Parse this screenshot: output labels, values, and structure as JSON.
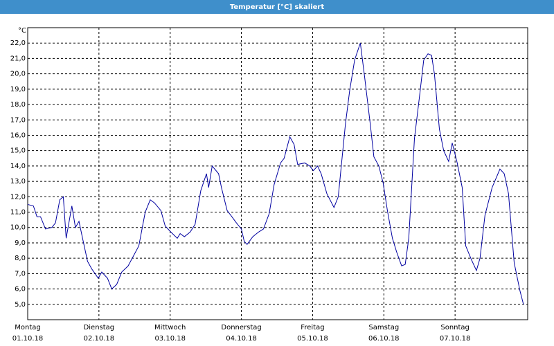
{
  "chart_data": {
    "type": "line",
    "title": "Temperatur [°C] skaliert",
    "ylabel": "°C",
    "x": [
      0,
      0.08,
      0.13,
      0.18,
      0.25,
      0.34,
      0.39,
      0.45,
      0.5,
      0.54,
      0.62,
      0.67,
      0.72,
      0.77,
      0.84,
      0.9,
      0.99,
      1.04,
      1.12,
      1.18,
      1.25,
      1.32,
      1.41,
      1.56,
      1.65,
      1.72,
      1.78,
      1.87,
      1.93,
      2.01,
      2.1,
      2.14,
      2.2,
      2.28,
      2.35,
      2.43,
      2.51,
      2.54,
      2.59,
      2.68,
      2.72,
      2.8,
      2.85,
      2.93,
      3.0,
      3.04,
      3.08,
      3.16,
      3.24,
      3.31,
      3.39,
      3.46,
      3.55,
      3.6,
      3.68,
      3.74,
      3.79,
      3.89,
      3.96,
      4.01,
      4.07,
      4.12,
      4.2,
      4.3,
      4.36,
      4.46,
      4.52,
      4.59,
      4.67,
      4.73,
      4.81,
      4.86,
      4.93,
      4.99,
      5.05,
      5.12,
      5.18,
      5.25,
      5.3,
      5.35,
      5.43,
      5.5,
      5.56,
      5.62,
      5.67,
      5.71,
      5.78,
      5.84,
      5.91,
      5.96,
      6.03,
      6.1,
      6.15,
      6.23,
      6.3,
      6.35,
      6.42,
      6.52,
      6.63,
      6.69,
      6.75,
      6.83,
      6.91,
      6.96
    ],
    "series": [
      {
        "color": "#0000a0",
        "values": [
          11.5,
          11.4,
          10.7,
          10.7,
          9.9,
          10.0,
          10.3,
          11.8,
          12.0,
          9.3,
          11.4,
          10.0,
          10.4,
          9.3,
          7.8,
          7.3,
          6.7,
          7.1,
          6.7,
          6.0,
          6.3,
          7.1,
          7.5,
          8.8,
          11.0,
          11.8,
          11.6,
          11.1,
          10.1,
          9.7,
          9.3,
          9.6,
          9.4,
          9.7,
          10.2,
          12.4,
          13.5,
          12.6,
          14.0,
          13.5,
          12.6,
          11.1,
          10.8,
          10.3,
          9.9,
          9.1,
          8.9,
          9.4,
          9.7,
          9.9,
          10.9,
          12.8,
          14.2,
          14.5,
          15.9,
          15.4,
          14.1,
          14.2,
          14.0,
          13.7,
          14.0,
          13.5,
          12.2,
          11.3,
          12.0,
          16.7,
          18.9,
          20.9,
          22.0,
          19.8,
          16.7,
          14.6,
          14.0,
          12.9,
          11.1,
          9.3,
          8.4,
          7.5,
          7.6,
          9.3,
          15.8,
          18.5,
          20.9,
          21.3,
          21.2,
          20.0,
          16.4,
          15.0,
          14.3,
          15.5,
          14.2,
          12.6,
          8.8,
          7.9,
          7.2,
          8.0,
          10.8,
          12.6,
          13.8,
          13.5,
          12.2,
          7.7,
          5.9,
          5.0
        ]
      }
    ],
    "xlim": [
      0,
      7
    ],
    "xticks": [
      {
        "value": 0,
        "label": "Montag"
      },
      {
        "value": 1,
        "label": "Dienstag"
      },
      {
        "value": 2,
        "label": "Mittwoch"
      },
      {
        "value": 3,
        "label": "Donnerstag"
      },
      {
        "value": 4,
        "label": "Freitag"
      },
      {
        "value": 5,
        "label": "Samstag"
      },
      {
        "value": 6,
        "label": "Sonntag"
      }
    ],
    "xtick_dates": [
      "01.10.18",
      "02.10.18",
      "03.10.18",
      "04.10.18",
      "05.10.18",
      "06.10.18",
      "07.10.18"
    ],
    "ylim": [
      4,
      23
    ],
    "yticks": [
      {
        "value": 5,
        "label": "5,0"
      },
      {
        "value": 6,
        "label": "6,0"
      },
      {
        "value": 7,
        "label": "7,0"
      },
      {
        "value": 8,
        "label": "8,0"
      },
      {
        "value": 9,
        "label": "9,0"
      },
      {
        "value": 10,
        "label": "10,0"
      },
      {
        "value": 11,
        "label": "11,0"
      },
      {
        "value": 12,
        "label": "12,0"
      },
      {
        "value": 13,
        "label": "13,0"
      },
      {
        "value": 14,
        "label": "14,0"
      },
      {
        "value": 15,
        "label": "15,0"
      },
      {
        "value": 16,
        "label": "16,0"
      },
      {
        "value": 17,
        "label": "17,0"
      },
      {
        "value": 18,
        "label": "18,0"
      },
      {
        "value": 19,
        "label": "19,0"
      },
      {
        "value": 20,
        "label": "20,0"
      },
      {
        "value": 21,
        "label": "21,0"
      },
      {
        "value": 22,
        "label": "22,0"
      }
    ],
    "grid": true
  }
}
